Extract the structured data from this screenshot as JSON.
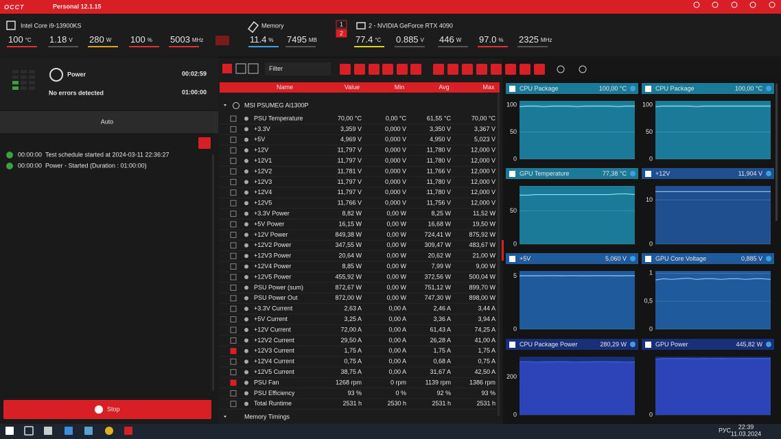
{
  "titlebar": {
    "logo": "OCCT",
    "version": "Personal 12.1.15"
  },
  "cpu": {
    "name": "Intel Core i9-13900KS",
    "stats": [
      [
        "100",
        "°C"
      ],
      [
        "1.18",
        "V"
      ],
      [
        "280",
        "W"
      ],
      [
        "100",
        "%"
      ],
      [
        "5003",
        "MHz"
      ]
    ]
  },
  "memory": {
    "name": "Memory",
    "stats": [
      [
        "11.4",
        "%"
      ],
      [
        "7495",
        "MB"
      ]
    ]
  },
  "gpu": {
    "badges": [
      "1",
      "2"
    ],
    "name": "2 - NVIDIA GeForce RTX 4090",
    "stats": [
      [
        "77.4",
        "°C"
      ],
      [
        "0.885",
        "V"
      ],
      [
        "446",
        "W"
      ],
      [
        "97.0",
        "%"
      ],
      [
        "2325",
        "MHz"
      ]
    ]
  },
  "test": {
    "name": "Power",
    "status": "No errors detected",
    "elapsed": "00:02:59",
    "duration": "01:00:00",
    "mode": "Auto",
    "log": [
      [
        "00:00:00",
        "Test schedule started at 2024-03-11 22:36:27"
      ],
      [
        "00:00:00",
        "Power - Started (Duration : 01:00:00)"
      ]
    ],
    "stop": "Stop"
  },
  "sensors": {
    "filter": "Filter",
    "columns": [
      "Name",
      "Value",
      "Min",
      "Avg",
      "Max"
    ],
    "group": "MSI PSUMEG Ai1300P",
    "rows": [
      [
        "PSU Temperature",
        "70,00 °C",
        "0,00 °C",
        "61,55 °C",
        "70,00 °C"
      ],
      [
        "+3.3V",
        "3,359 V",
        "0,000 V",
        "3,350 V",
        "3,367 V"
      ],
      [
        "+5V",
        "4,969 V",
        "0,000 V",
        "4,950 V",
        "5,023 V"
      ],
      [
        "+12V",
        "11,797 V",
        "0,000 V",
        "11,780 V",
        "12,000 V"
      ],
      [
        "+12V1",
        "11,797 V",
        "0,000 V",
        "11,780 V",
        "12,000 V"
      ],
      [
        "+12V2",
        "11,781 V",
        "0,000 V",
        "11,766 V",
        "12,000 V"
      ],
      [
        "+12V3",
        "11,797 V",
        "0,000 V",
        "11,780 V",
        "12,000 V"
      ],
      [
        "+12V4",
        "11,797 V",
        "0,000 V",
        "11,780 V",
        "12,000 V"
      ],
      [
        "+12V5",
        "11,766 V",
        "0,000 V",
        "11,756 V",
        "12,000 V"
      ],
      [
        "+3.3V Power",
        "8,82 W",
        "0,00 W",
        "8,25 W",
        "11,52 W"
      ],
      [
        "+5V Power",
        "16,15 W",
        "0,00 W",
        "16,68 W",
        "19,50 W"
      ],
      [
        "+12V Power",
        "849,38 W",
        "0,00 W",
        "724,41 W",
        "875,92 W"
      ],
      [
        "+12V2 Power",
        "347,55 W",
        "0,00 W",
        "309,47 W",
        "483,67 W"
      ],
      [
        "+12V3 Power",
        "20,64 W",
        "0,00 W",
        "20,62 W",
        "21,00 W"
      ],
      [
        "+12V4 Power",
        "8,85 W",
        "0,00 W",
        "7,99 W",
        "9,00 W"
      ],
      [
        "+12V5 Power",
        "455,92 W",
        "0,00 W",
        "372,56 W",
        "500,04 W"
      ],
      [
        "PSU Power (sum)",
        "872,67 W",
        "0,00 W",
        "751,12 W",
        "899,70 W"
      ],
      [
        "PSU Power Out",
        "872,00 W",
        "0,00 W",
        "747,30 W",
        "898,00 W"
      ],
      [
        "+3.3V Current",
        "2,63 A",
        "0,00 A",
        "2,46 A",
        "3,44 A"
      ],
      [
        "+5V Current",
        "3,25 A",
        "0,00 A",
        "3,36 A",
        "3,94 A"
      ],
      [
        "+12V Current",
        "72,00 A",
        "0,00 A",
        "61,43 A",
        "74,25 A"
      ],
      [
        "+12V2 Current",
        "29,50 A",
        "0,00 A",
        "26,28 A",
        "41,00 A"
      ],
      [
        "+12V3 Current",
        "1,75 A",
        "0,00 A",
        "1,75 A",
        "1,75 A"
      ],
      [
        "+12V4 Current",
        "0,75 A",
        "0,00 A",
        "0,68 A",
        "0,75 A"
      ],
      [
        "+12V5 Current",
        "38,75 A",
        "0,00 A",
        "31,67 A",
        "42,50 A"
      ],
      [
        "PSU Fan",
        "1268 rpm",
        "0 rpm",
        "1139 rpm",
        "1386 rpm"
      ],
      [
        "PSU Efficiency",
        "93 %",
        "0 %",
        "92 %",
        "93 %"
      ],
      [
        "Total Runtime",
        "2531 h",
        "2530 h",
        "2531 h",
        "2531 h"
      ]
    ],
    "checked": [
      22,
      25
    ],
    "next_group": "Memory Timings"
  },
  "graphs": [
    {
      "title": "CPU Package",
      "current": "100,00 °C",
      "ylim": [
        0,
        108
      ],
      "yticks": [
        0,
        50,
        100
      ],
      "color": "#7fe0f0",
      "fill": "#1b7a98",
      "area": false,
      "values": [
        97,
        98,
        98,
        97,
        98,
        98,
        98,
        97,
        98,
        98,
        98,
        98,
        97,
        98,
        98
      ]
    },
    {
      "title": "CPU Package",
      "current": "100,00 °C",
      "ylim": [
        0,
        108
      ],
      "yticks": [
        0,
        50,
        100
      ],
      "color": "#7fe0f0",
      "fill": "#1b7a98",
      "area": false,
      "values": [
        97,
        98,
        98,
        98,
        98,
        97,
        98,
        98,
        98,
        98,
        98,
        98,
        98,
        98,
        98
      ]
    },
    {
      "title": "GPU Temperature",
      "current": "77,38 °C",
      "ylim": [
        0,
        88
      ],
      "yticks": [
        0,
        50
      ],
      "color": "#7fe0f0",
      "fill": "#1b7a98",
      "area": false,
      "values": [
        74,
        74,
        75,
        75,
        75,
        75,
        75,
        75,
        75,
        75,
        75,
        75,
        76,
        76,
        75
      ]
    },
    {
      "title": "+12V",
      "current": "11,904 V",
      "ylim": [
        0,
        13.2
      ],
      "yticks": [
        0,
        10
      ],
      "color": "#8fb8f0",
      "fill": "#1f4f8e",
      "area": false,
      "values": [
        11.9,
        11.9,
        11.9,
        11.9,
        11.9,
        11.9,
        11.9,
        11.9,
        11.9,
        11.9,
        11.9,
        11.9,
        11.9,
        11.9,
        11.9
      ]
    },
    {
      "title": "+5V",
      "current": "5,060 V",
      "ylim": [
        0,
        5.5
      ],
      "yticks": [
        0,
        5
      ],
      "color": "#8fb8f0",
      "fill": "#1f5a9c",
      "area": false,
      "values": [
        5.05,
        5.06,
        5.05,
        5.06,
        5.06,
        5.05,
        5.06,
        5.06,
        5.05,
        5.06,
        5.06,
        5.06,
        5.05,
        5.06,
        5.06
      ]
    },
    {
      "title": "GPU Core Voltage",
      "current": "0,885 V",
      "ylim": [
        0,
        1.04
      ],
      "yticks": [
        0,
        {
          "value": 0.5,
          "label": "0,5"
        },
        1
      ],
      "color": "#8fb8f0",
      "fill": "#1f5a9c",
      "area": false,
      "values": [
        0.88,
        0.9,
        0.89,
        0.9,
        0.91,
        0.89,
        0.9,
        0.9,
        0.89,
        0.9,
        0.9,
        0.89,
        0.9,
        0.9,
        0.89
      ]
    },
    {
      "title": "CPU Package Power",
      "current": "280,29 W",
      "ylim": [
        0,
        307
      ],
      "yticks": [
        0,
        200
      ],
      "color": "#2c44b8",
      "fill": "#1a2f7a",
      "area": true,
      "values": [
        280,
        281,
        279,
        280,
        280,
        281,
        280,
        279,
        280,
        280,
        281,
        280,
        280,
        279,
        280
      ]
    },
    {
      "title": "GPU Power",
      "current": "445,82 W",
      "ylim": [
        0,
        460
      ],
      "yticks": [
        0
      ],
      "color": "#2c44b8",
      "fill": "#1a2f7a",
      "area": true,
      "values": [
        440,
        446,
        445,
        446,
        445,
        444,
        446,
        445,
        446,
        445,
        445,
        446,
        445,
        446,
        446
      ]
    }
  ],
  "taskbar": {
    "lang": "РУС",
    "time": "22:39",
    "date": "11.03.2024"
  }
}
